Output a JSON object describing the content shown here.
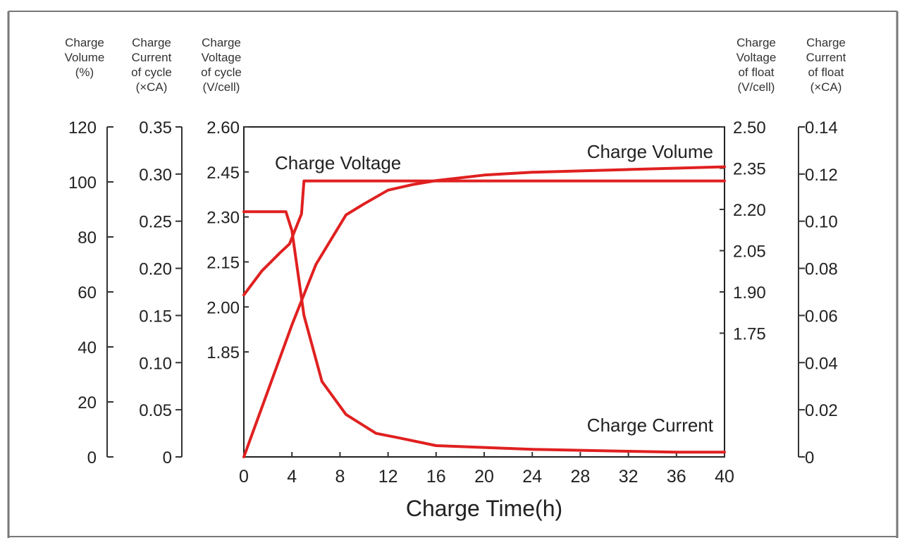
{
  "title_fragment": "",
  "chart_data": {
    "type": "line",
    "xlabel": "Charge Time(h)",
    "x_ticks": [
      "0",
      "4",
      "8",
      "12",
      "16",
      "20",
      "24",
      "28",
      "32",
      "36",
      "40"
    ],
    "xlim": [
      0,
      40
    ],
    "axes": [
      {
        "id": "volume",
        "side": "left",
        "header": [
          "Charge",
          "Volume",
          "(%)"
        ],
        "ylim": [
          0,
          120
        ],
        "ticks": [
          {
            "v": 0,
            "t": "0"
          },
          {
            "v": 20,
            "t": "20"
          },
          {
            "v": 40,
            "t": "40"
          },
          {
            "v": 60,
            "t": "60"
          },
          {
            "v": 80,
            "t": "80"
          },
          {
            "v": 100,
            "t": "100"
          },
          {
            "v": 120,
            "t": "120"
          }
        ]
      },
      {
        "id": "cycle_current",
        "side": "left",
        "header": [
          "Charge",
          "Current",
          "of cycle",
          "(×CA)"
        ],
        "ylim": [
          0,
          0.35
        ],
        "ticks": [
          {
            "v": 0,
            "t": "0"
          },
          {
            "v": 0.05,
            "t": "0.05"
          },
          {
            "v": 0.1,
            "t": "0.10"
          },
          {
            "v": 0.15,
            "t": "0.15"
          },
          {
            "v": 0.2,
            "t": "0.20"
          },
          {
            "v": 0.25,
            "t": "0.25"
          },
          {
            "v": 0.3,
            "t": "0.30"
          },
          {
            "v": 0.35,
            "t": "0.35"
          }
        ]
      },
      {
        "id": "cycle_voltage",
        "side": "left",
        "header": [
          "Charge",
          "Voltage",
          "of cycle",
          "(V/cell)"
        ],
        "ylim": [
          1.5,
          2.6
        ],
        "ticks": [
          {
            "v": 1.85,
            "t": "1.85"
          },
          {
            "v": 2.0,
            "t": "2.00"
          },
          {
            "v": 2.15,
            "t": "2.15"
          },
          {
            "v": 2.3,
            "t": "2.30"
          },
          {
            "v": 2.45,
            "t": "2.45"
          },
          {
            "v": 2.6,
            "t": "2.60"
          }
        ]
      },
      {
        "id": "float_voltage",
        "side": "right",
        "header": [
          "Charge",
          "Voltage",
          "of float",
          "(V/cell)"
        ],
        "ylim": [
          1.3,
          2.5
        ],
        "ticks": [
          {
            "v": 1.75,
            "t": "1.75"
          },
          {
            "v": 1.9,
            "t": "1.90"
          },
          {
            "v": 2.05,
            "t": "2.05"
          },
          {
            "v": 2.2,
            "t": "2.20"
          },
          {
            "v": 2.35,
            "t": "2.35"
          },
          {
            "v": 2.5,
            "t": "2.50"
          }
        ]
      },
      {
        "id": "float_current",
        "side": "right",
        "header": [
          "Charge",
          "Current",
          "of float",
          "(×CA)"
        ],
        "ylim": [
          0,
          0.14
        ],
        "ticks": [
          {
            "v": 0,
            "t": "0"
          },
          {
            "v": 0.02,
            "t": "0.02"
          },
          {
            "v": 0.04,
            "t": "0.04"
          },
          {
            "v": 0.06,
            "t": "0.06"
          },
          {
            "v": 0.08,
            "t": "0.08"
          },
          {
            "v": 0.1,
            "t": "0.10"
          },
          {
            "v": 0.12,
            "t": "0.12"
          },
          {
            "v": 0.14,
            "t": "0.14"
          }
        ]
      }
    ],
    "series": [
      {
        "name": "Charge Voltage",
        "axis": "cycle_voltage",
        "x": [
          0,
          1.5,
          3,
          3.8,
          4.2,
          4.8,
          5,
          10,
          20,
          30,
          40
        ],
        "y": [
          2.04,
          2.12,
          2.18,
          2.21,
          2.25,
          2.31,
          2.42,
          2.42,
          2.42,
          2.42,
          2.42
        ]
      },
      {
        "name": "Charge Volume",
        "axis": "volume",
        "x": [
          0,
          2,
          4,
          6,
          8.5,
          10,
          12,
          14,
          16,
          20,
          24,
          28,
          32,
          36,
          40
        ],
        "y": [
          0,
          24,
          48,
          70,
          88,
          92,
          97,
          99,
          100.5,
          102.5,
          103.5,
          104,
          104.5,
          105,
          105.5
        ]
      },
      {
        "name": "Charge Current",
        "axis": "cycle_current",
        "x": [
          0,
          3.5,
          4,
          5,
          6.5,
          8.5,
          11,
          13,
          16,
          20,
          24,
          28,
          32,
          36,
          40
        ],
        "y": [
          0.26,
          0.26,
          0.24,
          0.15,
          0.08,
          0.045,
          0.025,
          0.02,
          0.012,
          0.01,
          0.008,
          0.007,
          0.006,
          0.005,
          0.005
        ]
      }
    ],
    "annotations": [
      "Charge Voltage",
      "Charge Volume",
      "Charge Current"
    ],
    "line_color": "#e02020",
    "grid": false
  }
}
